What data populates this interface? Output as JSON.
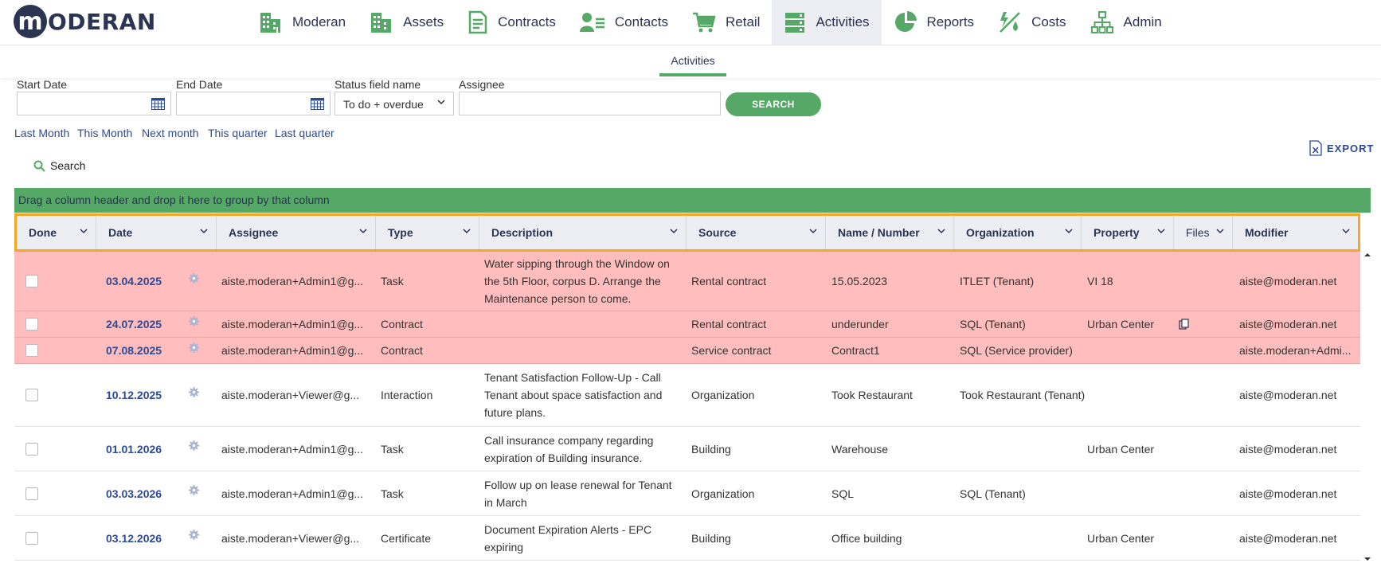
{
  "logo": {
    "initial": "m",
    "text": "ODERAN"
  },
  "nav": [
    {
      "label": "Moderan",
      "icon": "building-icon"
    },
    {
      "label": "Assets",
      "icon": "building-icon"
    },
    {
      "label": "Contracts",
      "icon": "document-icon"
    },
    {
      "label": "Contacts",
      "icon": "contact-icon"
    },
    {
      "label": "Retail",
      "icon": "cart-icon"
    },
    {
      "label": "Activities",
      "icon": "activities-icon"
    },
    {
      "label": "Reports",
      "icon": "pie-chart-icon"
    },
    {
      "label": "Costs",
      "icon": "costs-icon"
    },
    {
      "label": "Admin",
      "icon": "hierarchy-icon"
    }
  ],
  "subtab": "Activities",
  "filters": {
    "start_date_label": "Start Date",
    "end_date_label": "End Date",
    "status_label": "Status field name",
    "status_value": "To do + overdue",
    "assignee_label": "Assignee",
    "search_button": "SEARCH"
  },
  "quick_links": [
    "Last Month",
    "This Month",
    "Next month",
    "This quarter",
    "Last quarter"
  ],
  "export_label": "EXPORT",
  "grid_search_label": "Search",
  "group_bar_text": "Drag a column header and drop it here to group by that column",
  "columns": [
    "Done",
    "Date",
    "Assignee",
    "Type",
    "Description",
    "Source",
    "Name / Number",
    "Organization",
    "Property",
    "Files",
    "Modifier"
  ],
  "rows": [
    {
      "date": "03.04.2025",
      "assignee": "aiste.moderan+Admin1@g...",
      "type": "Task",
      "description": "Water sipping through the Window on the 5th Floor, corpus D. Arrange the Maintenance person to come.",
      "source": "Rental contract",
      "name": "15.05.2023",
      "organization": "ITLET (Tenant)",
      "property": "VI 18",
      "files": false,
      "modifier": "aiste@moderan.net",
      "overdue": true
    },
    {
      "date": "24.07.2025",
      "assignee": "aiste.moderan+Admin1@g...",
      "type": "Contract",
      "description": "",
      "source": "Rental contract",
      "name": "underunder",
      "organization": "SQL (Tenant)",
      "property": "Urban Center",
      "files": true,
      "modifier": "aiste@moderan.net",
      "overdue": true
    },
    {
      "date": "07.08.2025",
      "assignee": "aiste.moderan+Admin1@g...",
      "type": "Contract",
      "description": "",
      "source": "Service contract",
      "name": "Contract1",
      "organization": "SQL (Service provider)",
      "property": "",
      "files": false,
      "modifier": "aiste.moderan+Admi...",
      "overdue": true
    },
    {
      "date": "10.12.2025",
      "assignee": "aiste.moderan+Viewer@g...",
      "type": "Interaction",
      "description": "Tenant Satisfaction Follow-Up - Call Tenant about space satisfaction and future plans.",
      "source": "Organization",
      "name": "Took Restaurant",
      "organization": "Took Restaurant (Tenant)",
      "property": "",
      "files": false,
      "modifier": "aiste@moderan.net",
      "overdue": false
    },
    {
      "date": "01.01.2026",
      "assignee": "aiste.moderan+Admin1@g...",
      "type": "Task",
      "description": "Call insurance company regarding expiration of Building insurance.",
      "source": "Building",
      "name": "Warehouse",
      "organization": "",
      "property": "Urban Center",
      "files": false,
      "modifier": "aiste@moderan.net",
      "overdue": false
    },
    {
      "date": "03.03.2026",
      "assignee": "aiste.moderan+Admin1@g...",
      "type": "Task",
      "description": "Follow up on lease renewal for Tenant in March",
      "source": "Organization",
      "name": "SQL",
      "organization": "SQL (Tenant)",
      "property": "",
      "files": false,
      "modifier": "aiste@moderan.net",
      "overdue": false
    },
    {
      "date": "03.12.2026",
      "assignee": "aiste.moderan+Viewer@g...",
      "type": "Certificate",
      "description": "Document Expiration Alerts - EPC expiring",
      "source": "Building",
      "name": "Office building",
      "organization": "",
      "property": "Urban Center",
      "files": false,
      "modifier": "aiste@moderan.net",
      "overdue": false
    }
  ],
  "colors": {
    "accent": "#55a865",
    "brand": "#2b3453",
    "link": "#2d4a94",
    "overdue": "#ffbdbd",
    "header_outline": "#f5a623"
  }
}
